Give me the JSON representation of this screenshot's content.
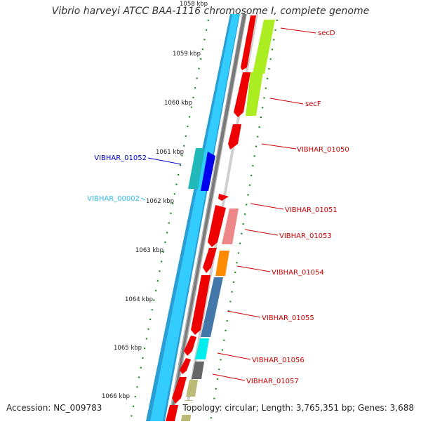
{
  "title": "Vibrio harveyi ATCC BAA-1116 chromosome I, complete genome",
  "footer": {
    "accession": "Accession: NC_009783",
    "stats": "Topology: circular; Length: 3,765,351 bp; Genes: 3,688"
  },
  "colors": {
    "backbone_light": "#33ccff",
    "backbone_dark": "#2a9fd6",
    "backbone_gray": "#808080",
    "tick_green": "#1f8a1f",
    "gene_red": "#ee0000",
    "label_red": "#cc0000",
    "label_blue": "#0000cc",
    "label_cyan": "#33bbee"
  },
  "ruler": [
    {
      "label": "1058 kbp"
    },
    {
      "label": "1059 kbp"
    },
    {
      "label": "1060 kbp"
    },
    {
      "label": "1061 kbp"
    },
    {
      "label": "1062 kbp"
    },
    {
      "label": "1063 kbp"
    },
    {
      "label": "1064 kbp"
    },
    {
      "label": "1065 kbp"
    },
    {
      "label": "1066 kbp"
    }
  ],
  "gene_labels": [
    {
      "text": "secD",
      "color": "#cc0000"
    },
    {
      "text": "secF",
      "color": "#cc0000"
    },
    {
      "text": "VIBHAR_01050",
      "color": "#cc0000"
    },
    {
      "text": "VIBHAR_01052",
      "color": "#0000cc"
    },
    {
      "text": "VIBHAR_00002",
      "color": "#33bbee"
    },
    {
      "text": "VIBHAR_01051",
      "color": "#cc0000"
    },
    {
      "text": "VIBHAR_01053",
      "color": "#cc0000"
    },
    {
      "text": "VIBHAR_01054",
      "color": "#cc0000"
    },
    {
      "text": "VIBHAR_01055",
      "color": "#cc0000"
    },
    {
      "text": "VIBHAR_01056",
      "color": "#cc0000"
    },
    {
      "text": "VIBHAR_01057",
      "color": "#cc0000"
    }
  ]
}
